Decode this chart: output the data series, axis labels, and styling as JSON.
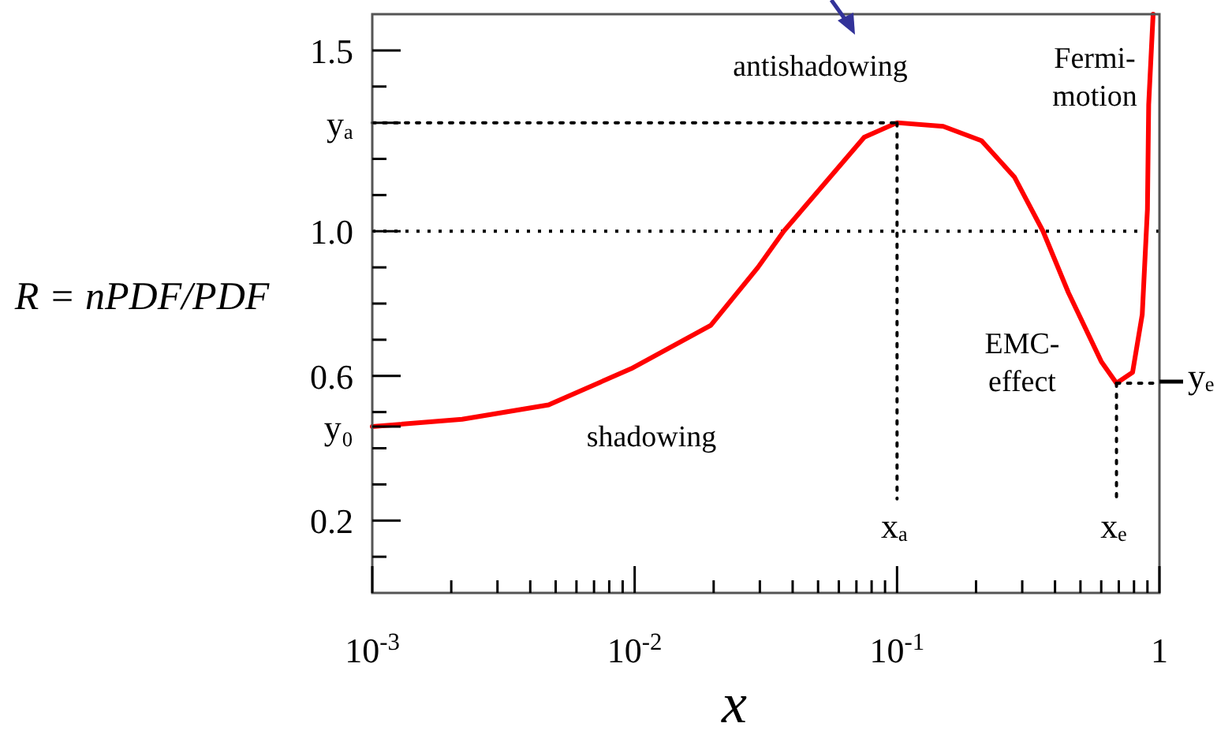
{
  "chart_data": {
    "type": "line",
    "ylabel": "R = nPDF/PDF",
    "xlabel": "x",
    "log": "x",
    "xlim": [
      0.001,
      1
    ],
    "ylim": [
      0,
      1.6
    ],
    "xticks": [
      {
        "value": 0.001,
        "label": "10$^{-3}$"
      },
      {
        "value": 0.002,
        "label": null
      },
      {
        "value": 0.003,
        "label": null
      },
      {
        "value": 0.004,
        "label": null
      },
      {
        "value": 0.005,
        "label": null
      },
      {
        "value": 0.006,
        "label": null
      },
      {
        "value": 0.007,
        "label": null
      },
      {
        "value": 0.008,
        "label": null
      },
      {
        "value": 0.009,
        "label": null
      },
      {
        "value": 0.01,
        "label": "10$^{-2}$"
      },
      {
        "value": 0.02,
        "label": null
      },
      {
        "value": 0.03,
        "label": null
      },
      {
        "value": 0.04,
        "label": null
      },
      {
        "value": 0.05,
        "label": null
      },
      {
        "value": 0.06,
        "label": null
      },
      {
        "value": 0.07,
        "label": null
      },
      {
        "value": 0.08,
        "label": null
      },
      {
        "value": 0.09,
        "label": null
      },
      {
        "value": 0.1,
        "label": "10$^{-1}$"
      },
      {
        "value": 0.2,
        "label": null
      },
      {
        "value": 0.3,
        "label": null
      },
      {
        "value": 0.4,
        "label": null
      },
      {
        "value": 0.5,
        "label": null
      },
      {
        "value": 0.6,
        "label": null
      },
      {
        "value": 0.7,
        "label": null
      },
      {
        "value": 0.8,
        "label": null
      },
      {
        "value": 0.9,
        "label": null
      },
      {
        "value": 1,
        "label": "1"
      }
    ],
    "yticks": [
      {
        "value": 0.1,
        "label": null
      },
      0.2,
      {
        "value": 0.3,
        "label": null
      },
      {
        "value": 0.4,
        "label": null
      },
      {
        "value": 0.46,
        "label": "y₀"
      },
      {
        "value": 0.5,
        "label": null
      },
      0.6,
      {
        "value": 0.7,
        "label": null
      },
      {
        "value": 0.8,
        "label": null
      },
      {
        "value": 0.9,
        "label": null
      },
      {
        "value": 1.0,
        "label": "1.0"
      },
      {
        "value": 1.1,
        "label": null
      },
      {
        "value": 1.2,
        "label": null
      },
      {
        "value": 1.3,
        "label": "yₐ"
      },
      {
        "value": 1.4,
        "label": null
      },
      1.5
    ],
    "series": [
      {
        "color": "#ff0000",
        "line_style": "solid",
        "x": [
          0.001,
          0.0022,
          0.0047,
          0.0097,
          0.0195,
          0.0295,
          0.037,
          0.075,
          0.1,
          0.15,
          0.21,
          0.28,
          0.36,
          0.45,
          0.6,
          0.686,
          0.79,
          0.86,
          0.9,
          0.91,
          0.946
        ],
        "values": [
          0.46,
          0.48,
          0.52,
          0.62,
          0.74,
          0.9,
          1.0,
          1.26,
          1.3,
          1.29,
          1.25,
          1.15,
          1.0,
          0.83,
          0.64,
          0.58,
          0.61,
          0.77,
          1.06,
          1.35,
          1.6
        ]
      },
      {
        "color": "#000000",
        "line_style": "dotted",
        "x": [
          0.001,
          0.1
        ],
        "values": [
          1.3,
          1.3
        ]
      },
      {
        "color": "#000000",
        "line_style": "dotted",
        "x": [
          0.1,
          0.1
        ],
        "values": [
          1.3,
          0.26
        ]
      },
      {
        "color": "#000000",
        "line_style": "dotted",
        "x": [
          0.686,
          0.686
        ],
        "values": [
          0.58,
          0.26
        ]
      },
      {
        "color": "#000000",
        "line_style": "dotted",
        "x": [
          0.686,
          1
        ],
        "values": [
          0.58,
          0.58
        ]
      }
    ],
    "ref_lines": [
      {
        "axis": "y",
        "value": 1.0,
        "color": "#000000",
        "line_style": "dotted"
      }
    ],
    "annotations": [
      "antishadowing",
      "Fermi-\nmotion",
      "EMC-\neffect",
      "shadowing",
      "xₐ",
      "xₑ",
      "yₑ"
    ]
  }
}
